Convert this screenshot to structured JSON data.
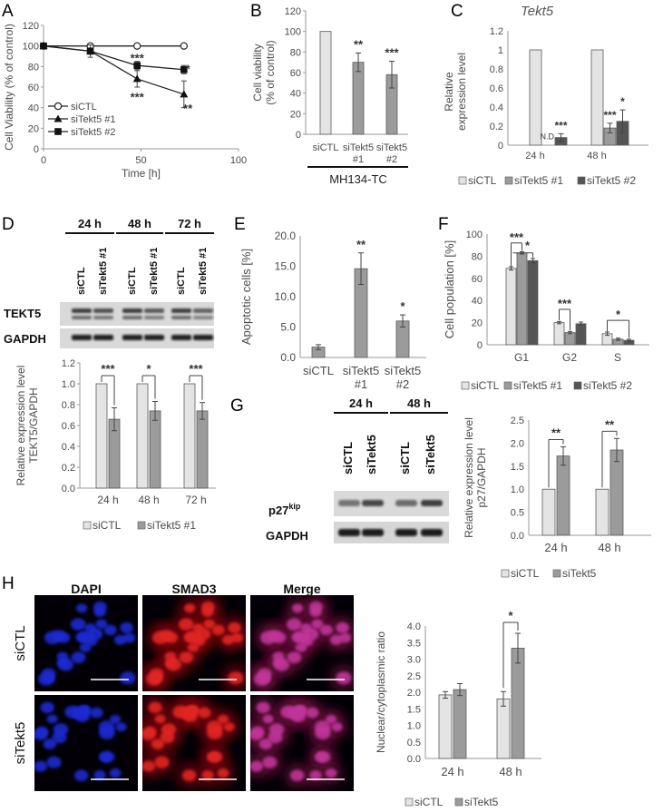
{
  "colors": {
    "sictl": "#e4e4e4",
    "tekt1": "#9b9b9b",
    "tekt2": "#555555",
    "red": "#d62020",
    "blue": "#2b3bd8"
  },
  "panels": {
    "A": {
      "letter": "A",
      "chart_data": {
        "type": "line",
        "xlabel": "Time [h]",
        "ylabel": "Cell Viability (% of control)",
        "xlim": [
          0,
          100
        ],
        "ylim": [
          0,
          120
        ],
        "xticks": [
          0,
          50,
          100
        ],
        "yticks": [
          0,
          20,
          40,
          60,
          80,
          100,
          120
        ],
        "series": [
          {
            "name": "siCTL",
            "marker": "circle",
            "x": [
              0,
              24,
              48,
              72
            ],
            "y": [
              100,
              100,
              100,
              100
            ],
            "err": [
              0,
              0,
              0,
              0
            ]
          },
          {
            "name": "siTekt5 #1",
            "marker": "triangle",
            "x": [
              0,
              24,
              48,
              72
            ],
            "y": [
              100,
              95,
              68,
              53
            ],
            "err": [
              0,
              3,
              8,
              13
            ]
          },
          {
            "name": "siTekt5 #2",
            "marker": "square",
            "x": [
              0,
              24,
              48,
              72
            ],
            "y": [
              100,
              95,
              81,
              77
            ],
            "err": [
              0,
              6,
              4,
              4
            ]
          }
        ],
        "annotations": [
          {
            "text": "***",
            "x": 48,
            "y": 88
          },
          {
            "text": "***",
            "x": 48,
            "y": 50
          },
          {
            "text": "*",
            "x": 74,
            "y": 77
          },
          {
            "text": "**",
            "x": 74,
            "y": 39
          }
        ]
      }
    },
    "B": {
      "letter": "B",
      "chart_data": {
        "type": "bar",
        "ylabel": "Cell viability\n(% of control)",
        "ylim": [
          0,
          120
        ],
        "yticks": [
          0,
          20,
          40,
          60,
          80,
          100,
          120
        ],
        "categories": [
          "siCTL",
          "siTekt5\n#1",
          "siTekt5\n#2"
        ],
        "values": [
          100,
          70,
          58
        ],
        "err": [
          0,
          9,
          13
        ],
        "sig": [
          "",
          "**",
          "***"
        ],
        "group_label": "MH134-TC"
      }
    },
    "C": {
      "letter": "C",
      "title": "Tekt5",
      "chart_data": {
        "type": "bar",
        "ylabel": "Relative\nexpression level",
        "ylim": [
          0,
          1.2
        ],
        "yticks": [
          0,
          0.2,
          0.4,
          0.6,
          0.8,
          1,
          1.2
        ],
        "categories": [
          "24 h",
          "48 h"
        ],
        "series": [
          {
            "name": "siCTL",
            "values": [
              1,
              1
            ],
            "err": [
              0,
              0
            ],
            "sig": [
              "",
              ""
            ]
          },
          {
            "name": "siTekt5 #1",
            "values": [
              0,
              0.18
            ],
            "err": [
              0,
              0.05
            ],
            "sig": [
              "N.D.",
              ""
            ]
          },
          {
            "name": "siTekt5 #2",
            "values": [
              0.08,
              0.25
            ],
            "err": [
              0.04,
              0.12
            ],
            "sig": [
              "***",
              "*"
            ]
          }
        ],
        "extra_sig": [
          {
            "text": "***",
            "group": 1,
            "series": 1
          }
        ]
      }
    },
    "D": {
      "letter": "D",
      "blot_headers": [
        "24 h",
        "48 h",
        "72 h"
      ],
      "lane_labels": [
        "siCTL",
        "siTekt5 #1",
        "siCTL",
        "siTekt5 #1",
        "siCTL",
        "siTekt5 #1"
      ],
      "blot_rows": [
        "TEKT5",
        "GAPDH"
      ],
      "chart_data": {
        "type": "bar",
        "ylabel": "Relative expression level\nTEKT5/GAPDH",
        "ylim": [
          0,
          1.2
        ],
        "yticks": [
          "0.0",
          "0.2",
          "0.4",
          "0.6",
          "0.8",
          "1.0",
          "1.2"
        ],
        "categories": [
          "24 h",
          "48 h",
          "72 h"
        ],
        "series": [
          {
            "name": "siCTL",
            "values": [
              1,
              1,
              1
            ],
            "err": [
              0,
              0,
              0
            ]
          },
          {
            "name": "siTekt5 #1",
            "values": [
              0.66,
              0.74,
              0.74
            ],
            "err": [
              0.11,
              0.09,
              0.08
            ]
          }
        ],
        "sig": [
          "***",
          "*",
          "***"
        ]
      }
    },
    "E": {
      "letter": "E",
      "chart_data": {
        "type": "bar",
        "ylabel": "Apoptotic cells [%]",
        "ylim": [
          0,
          20
        ],
        "yticks": [
          "0.0",
          "5.0",
          "10.0",
          "15.0",
          "20.0"
        ],
        "categories": [
          "siCTL",
          "siTekt5\n#1",
          "siTekt5\n#2"
        ],
        "values": [
          1.7,
          14.6,
          6.0
        ],
        "err": [
          0.4,
          2.6,
          1.0
        ],
        "sig": [
          "",
          "**",
          "*"
        ]
      }
    },
    "F": {
      "letter": "F",
      "chart_data": {
        "type": "bar",
        "ylabel": "Cell population [%]",
        "ylim": [
          0,
          100
        ],
        "yticks": [
          0,
          20,
          40,
          60,
          80,
          100
        ],
        "categories": [
          "G1",
          "G2",
          "S"
        ],
        "series": [
          {
            "name": "siCTL",
            "values": [
              69,
              20,
              10
            ],
            "err": [
              1.5,
              1,
              1.5
            ]
          },
          {
            "name": "siTekt5 #1",
            "values": [
              83,
              11,
              5
            ],
            "err": [
              1,
              1,
              1
            ]
          },
          {
            "name": "siTekt5 #2",
            "values": [
              76,
              19,
              4
            ],
            "err": [
              2,
              1.5,
              1
            ]
          }
        ],
        "sig": [
          "***",
          "*",
          "***",
          "*"
        ]
      }
    },
    "G": {
      "letter": "G",
      "blot_headers": [
        "24 h",
        "48 h"
      ],
      "lane_labels": [
        "siCTL",
        "siTekt5",
        "siCTL",
        "siTekt5"
      ],
      "blot_row_1_main": "p27",
      "blot_row_1_sup": "kip",
      "blot_row_2": "GAPDH",
      "chart_data": {
        "type": "bar",
        "ylabel": "Relative expression level\np27/GAPDH",
        "ylim": [
          0,
          2.5
        ],
        "yticks": [
          "0.0",
          "0.5",
          "1.0",
          "1.5",
          "2.0",
          "2.5"
        ],
        "categories": [
          "24 h",
          "48 h"
        ],
        "series": [
          {
            "name": "siCTL",
            "values": [
              1.0,
              1.0
            ],
            "err": [
              0,
              0
            ]
          },
          {
            "name": "siTekt5",
            "values": [
              1.72,
              1.85
            ],
            "err": [
              0.2,
              0.25
            ]
          }
        ],
        "sig": [
          "**",
          "**"
        ]
      }
    },
    "H": {
      "letter": "H",
      "col_headers": [
        "DAPI",
        "SMAD3",
        "Merge"
      ],
      "row_labels": [
        "siCTL",
        "siTekt5"
      ],
      "chart_data": {
        "type": "bar",
        "ylabel": "Nuclear/cytoplasmic ratio",
        "ylim": [
          0,
          4.0
        ],
        "yticks": [
          "0.0",
          "0.5",
          "1.0",
          "1.5",
          "2.0",
          "2.5",
          "3.0",
          "3.5",
          "4.0"
        ],
        "categories": [
          "24 h",
          "48 h"
        ],
        "series": [
          {
            "name": "siCTL",
            "values": [
              1.92,
              1.8
            ],
            "err": [
              0.1,
              0.22
            ]
          },
          {
            "name": "siTekt5",
            "values": [
              2.08,
              3.33
            ],
            "err": [
              0.18,
              0.45
            ]
          }
        ],
        "sig": [
          "",
          "*"
        ]
      }
    }
  }
}
